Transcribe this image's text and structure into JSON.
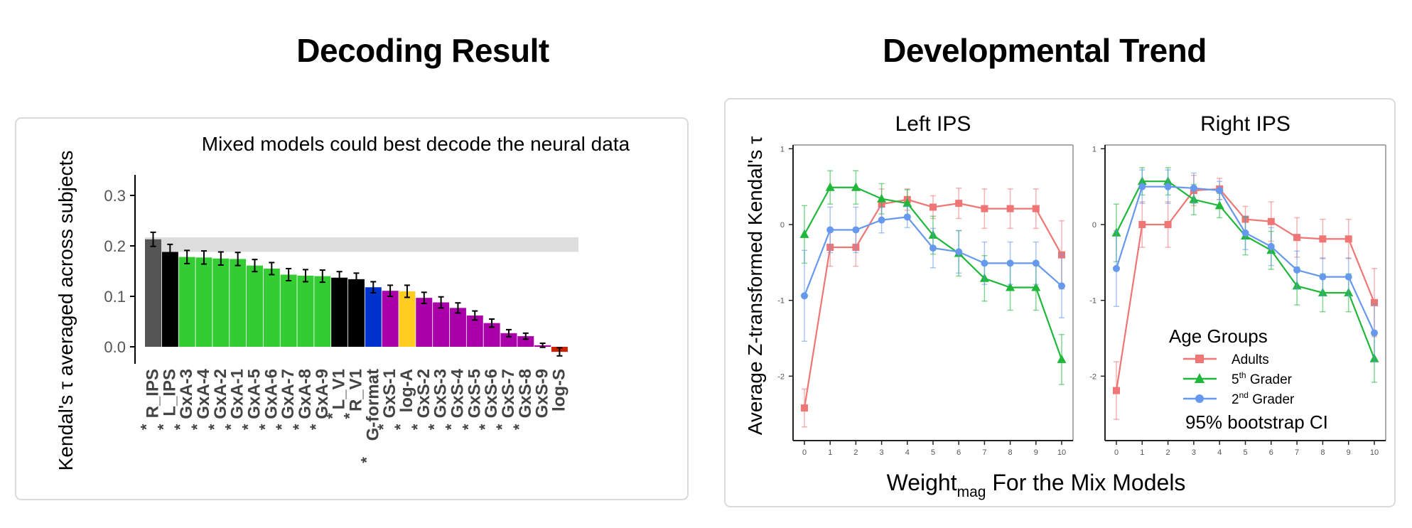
{
  "titles": {
    "left": "Decoding Result",
    "right": "Developmental Trend"
  },
  "chart_data": [
    {
      "type": "bar",
      "title": "Mixed models could best decode the neural data",
      "ylabel": "Kendal's τ averaged across subjects",
      "ylim": [
        -0.02,
        0.34
      ],
      "yticks": [
        "0.0",
        "0.1",
        "0.2",
        "0.3"
      ],
      "reference_band": [
        0.188,
        0.217
      ],
      "categories": [
        "R_IPS",
        "L_IPS",
        "GxA-3",
        "GxA-4",
        "GxA-2",
        "GxA-1",
        "GxA-5",
        "GxA-6",
        "GxA-7",
        "GxA-8",
        "GxA-9",
        "L_V1",
        "R_V1",
        "G-format",
        "GxS-1",
        "log-A",
        "GxS-2",
        "GxS-3",
        "GxS-4",
        "GxS-5",
        "GxS-6",
        "GxS-7",
        "GxS-8",
        "GxS-9",
        "log-S"
      ],
      "significant": [
        true,
        true,
        true,
        true,
        true,
        true,
        true,
        true,
        true,
        true,
        true,
        true,
        true,
        true,
        true,
        true,
        true,
        true,
        true,
        true,
        true,
        true,
        true,
        false,
        false
      ],
      "values": [
        0.213,
        0.188,
        0.178,
        0.177,
        0.175,
        0.174,
        0.161,
        0.155,
        0.143,
        0.141,
        0.14,
        0.137,
        0.134,
        0.118,
        0.111,
        0.11,
        0.097,
        0.088,
        0.077,
        0.062,
        0.047,
        0.027,
        0.021,
        0.003,
        -0.01
      ],
      "errors": [
        0.014,
        0.015,
        0.013,
        0.013,
        0.013,
        0.013,
        0.012,
        0.012,
        0.012,
        0.012,
        0.012,
        0.012,
        0.012,
        0.011,
        0.011,
        0.012,
        0.011,
        0.011,
        0.01,
        0.009,
        0.008,
        0.007,
        0.006,
        0.004,
        0.008
      ],
      "colors": [
        "#555555",
        "#000000",
        "#33cc33",
        "#33cc33",
        "#33cc33",
        "#33cc33",
        "#33cc33",
        "#33cc33",
        "#33cc33",
        "#33cc33",
        "#33cc33",
        "#000000",
        "#000000",
        "#0033cc",
        "#aa00aa",
        "#ffcc22",
        "#aa00aa",
        "#aa00aa",
        "#aa00aa",
        "#aa00aa",
        "#aa00aa",
        "#aa00aa",
        "#aa00aa",
        "#aa00aa",
        "#cc2200"
      ]
    },
    {
      "type": "line",
      "ylabel": "Average Z-transformed Kendal's τ",
      "xlabel_main": "Weight",
      "xlabel_sub": "mag",
      "xlabel_rest": " For the Mix Models",
      "x": [
        0,
        1,
        2,
        3,
        4,
        5,
        6,
        7,
        8,
        9,
        10
      ],
      "ylim": [
        -2.85,
        1.05
      ],
      "yticks": [
        1,
        0,
        -1,
        -2
      ],
      "legend": {
        "title": "Age Groups",
        "footer": "95% bootstrap CI",
        "position": "bottom-right"
      },
      "series": [
        {
          "name": "Adults",
          "ord": "",
          "sup": "",
          "color": "#f07575",
          "marker": "square"
        },
        {
          "name": "Grader",
          "ord": "5",
          "sup": "th",
          "color": "#1fb83a",
          "marker": "triangle"
        },
        {
          "name": "Grader",
          "ord": "2",
          "sup": "nd",
          "color": "#6699ee",
          "marker": "circle"
        }
      ],
      "facets": [
        {
          "title": "Left IPS",
          "series_values": [
            [
              -2.42,
              -0.3,
              -0.3,
              0.27,
              0.33,
              0.23,
              0.28,
              0.21,
              0.21,
              0.21,
              -0.4
            ],
            [
              -0.13,
              0.49,
              0.49,
              0.34,
              0.28,
              -0.14,
              -0.38,
              -0.71,
              -0.83,
              -0.83,
              -1.78
            ],
            [
              -0.94,
              -0.07,
              -0.07,
              0.06,
              0.1,
              -0.31,
              -0.36,
              -0.51,
              -0.51,
              -0.51,
              -0.81
            ]
          ],
          "series_errors": [
            [
              0.25,
              0.25,
              0.25,
              0.2,
              0.14,
              0.15,
              0.2,
              0.26,
              0.26,
              0.26,
              0.45
            ],
            [
              0.38,
              0.22,
              0.22,
              0.2,
              0.18,
              0.25,
              0.3,
              0.3,
              0.3,
              0.3,
              0.33
            ],
            [
              0.6,
              0.3,
              0.3,
              0.17,
              0.14,
              0.26,
              0.28,
              0.28,
              0.28,
              0.28,
              0.42
            ]
          ]
        },
        {
          "title": "Right IPS",
          "series_values": [
            [
              -2.19,
              0.0,
              0.0,
              0.45,
              0.47,
              0.07,
              0.04,
              -0.17,
              -0.19,
              -0.19,
              -1.03
            ],
            [
              -0.11,
              0.57,
              0.57,
              0.33,
              0.25,
              -0.15,
              -0.34,
              -0.81,
              -0.9,
              -0.9,
              -1.77
            ],
            [
              -0.58,
              0.5,
              0.5,
              0.48,
              0.45,
              -0.11,
              -0.29,
              -0.6,
              -0.69,
              -0.69,
              -1.43
            ]
          ],
          "series_errors": [
            [
              0.38,
              0.3,
              0.3,
              0.2,
              0.14,
              0.17,
              0.26,
              0.26,
              0.26,
              0.26,
              0.45
            ],
            [
              0.38,
              0.18,
              0.18,
              0.2,
              0.16,
              0.25,
              0.25,
              0.25,
              0.25,
              0.25,
              0.31
            ],
            [
              0.5,
              0.22,
              0.22,
              0.2,
              0.12,
              0.22,
              0.25,
              0.25,
              0.25,
              0.25,
              0.38
            ]
          ]
        }
      ]
    }
  ]
}
